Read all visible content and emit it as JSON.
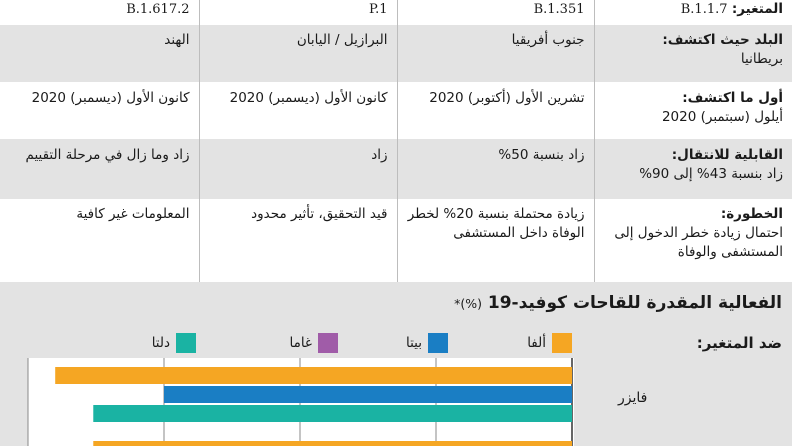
{
  "table": {
    "header": {
      "label": "المتغير:",
      "variants": [
        "B.1.1.7",
        "B.1.351",
        "P.1",
        "B.1.617.2"
      ]
    },
    "rows": [
      {
        "label": "البلد حيث اكتشف:",
        "values": [
          "بريطانيا",
          "جنوب أفريقيا",
          "البرازيل / اليابان",
          "الهند"
        ]
      },
      {
        "label": "أول ما اكتشف:",
        "values": [
          "أيلول (سبتمبر) 2020",
          "تشرين الأول (أكتوبر) 2020",
          "كانون الأول (ديسمبر) 2020",
          "كانون الأول (ديسمبر) 2020"
        ]
      },
      {
        "label": "القابلية للانتقال:",
        "values": [
          "زاد بنسبة 43% إلى 90%",
          "زاد بنسبة 50%",
          "زاد",
          "زاد وما زال في مرحلة التقييم"
        ]
      },
      {
        "label": "الخطورة:",
        "values": [
          "احتمال زيادة خطر الدخول إلى المستشفى والوفاة",
          "زيادة محتملة بنسبة 20% لخطر الوفاة داخل المستشفى",
          "قيد التحقيق، تأثير محدود",
          "المعلومات غير كافية"
        ]
      }
    ]
  },
  "chart": {
    "title": "الفعالية المقدرة للقاحات كوفيد-19",
    "unit": "(%)*",
    "against_label": "ضد المتغير:",
    "colors": {
      "alpha": "#f5a623",
      "beta": "#1a7ec4",
      "gamma": "#a05ca8",
      "delta": "#1ab3a3"
    }
  },
  "chart_data": {
    "type": "bar",
    "orientation": "horizontal",
    "categories": [
      "فايزر"
    ],
    "series": [
      {
        "name": "ألفا",
        "color": "#f5a623",
        "values": [
          95
        ]
      },
      {
        "name": "بيتا",
        "color": "#1a7ec4",
        "values": [
          75
        ]
      },
      {
        "name": "غاما",
        "color": "#a05ca8",
        "values": [
          null
        ]
      },
      {
        "name": "دلتا",
        "color": "#1ab3a3",
        "values": [
          88
        ]
      }
    ],
    "partial_next_category_value": 88,
    "xlim": [
      0,
      100
    ],
    "gridlines": [
      0,
      25,
      50,
      75,
      100
    ],
    "legend_placement": "top"
  }
}
